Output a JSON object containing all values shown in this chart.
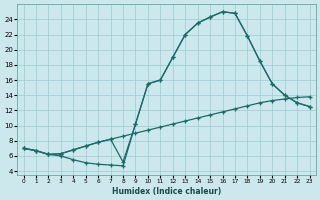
{
  "xlabel": "Humidex (Indice chaleur)",
  "bg_color": "#cce8ec",
  "grid_color": "#99cdd4",
  "line_color": "#1a6b6b",
  "xlim": [
    -0.5,
    23.5
  ],
  "ylim": [
    3.5,
    26
  ],
  "xticks": [
    0,
    1,
    2,
    3,
    4,
    5,
    6,
    7,
    8,
    9,
    10,
    11,
    12,
    13,
    14,
    15,
    16,
    17,
    18,
    19,
    20,
    21,
    22,
    23
  ],
  "yticks": [
    4,
    6,
    8,
    10,
    12,
    14,
    16,
    18,
    20,
    22,
    24
  ],
  "curve1_x": [
    0,
    1,
    2,
    3,
    4,
    5,
    6,
    7,
    8,
    9,
    10,
    11,
    12,
    13,
    14,
    15,
    16,
    17,
    18,
    19,
    20,
    21,
    22,
    23
  ],
  "curve1_y": [
    7.0,
    6.7,
    6.2,
    6.0,
    5.5,
    5.1,
    4.9,
    4.8,
    4.7,
    10.2,
    15.5,
    16.0,
    19.0,
    22.0,
    23.5,
    24.3,
    25.0,
    24.8,
    21.8,
    18.5,
    15.5,
    14.0,
    13.0,
    12.5
  ],
  "curve2_x": [
    0,
    1,
    2,
    3,
    4,
    5,
    6,
    7,
    8,
    9,
    10,
    11,
    12,
    13,
    14,
    15,
    16,
    17,
    18,
    19,
    20,
    21,
    22,
    23
  ],
  "curve2_y": [
    7.0,
    6.7,
    6.2,
    6.3,
    6.8,
    7.3,
    7.8,
    8.2,
    5.2,
    10.2,
    15.5,
    16.0,
    19.0,
    22.0,
    23.5,
    24.3,
    25.0,
    24.8,
    21.8,
    18.5,
    15.5,
    14.0,
    13.0,
    12.5
  ],
  "curve3_x": [
    0,
    1,
    2,
    3,
    4,
    5,
    6,
    7,
    8,
    9,
    10,
    11,
    12,
    13,
    14,
    15,
    16,
    17,
    18,
    19,
    20,
    21,
    22,
    23
  ],
  "curve3_y": [
    7.0,
    6.7,
    6.2,
    6.3,
    6.8,
    7.3,
    7.8,
    8.2,
    8.6,
    9.0,
    9.4,
    9.8,
    10.2,
    10.6,
    11.0,
    11.4,
    11.8,
    12.2,
    12.6,
    13.0,
    13.3,
    13.5,
    13.7,
    13.8
  ]
}
